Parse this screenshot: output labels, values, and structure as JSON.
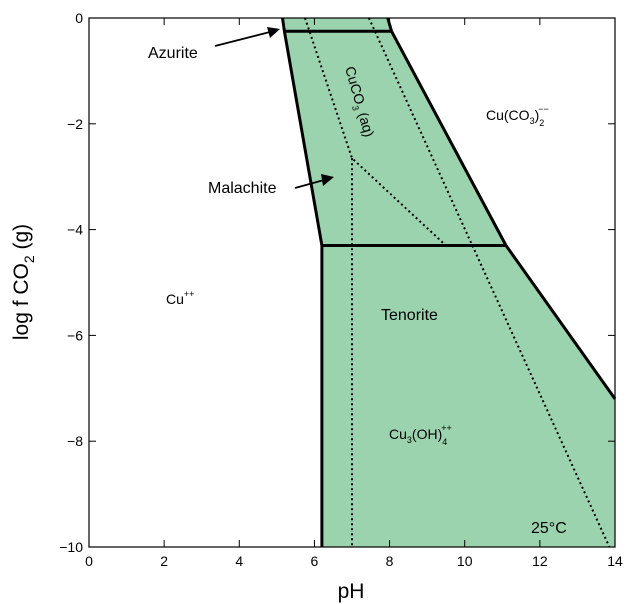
{
  "chart_data": {
    "type": "area",
    "title": "",
    "xlabel": "pH",
    "ylabel": "log f CO2 (g)",
    "xlim": [
      0,
      14
    ],
    "ylim": [
      -10,
      0
    ],
    "xticks": [
      0,
      2,
      4,
      6,
      8,
      10,
      12,
      14
    ],
    "yticks": [
      0,
      -2,
      -4,
      -6,
      -8,
      -10
    ],
    "xtick_labels": [
      "0",
      "2",
      "4",
      "6",
      "8",
      "10",
      "12",
      "14"
    ],
    "ytick_labels": [
      "0",
      "−2",
      "−4",
      "−6",
      "−8",
      "−10"
    ],
    "fill_color": "#9bd3ae",
    "grid": false,
    "stable_regions": [
      {
        "name": "Azurite",
        "polygon": [
          [
            5.15,
            0
          ],
          [
            7.95,
            0
          ],
          [
            8.05,
            -0.25
          ],
          [
            5.2,
            -0.25
          ]
        ]
      },
      {
        "name": "Malachite",
        "polygon": [
          [
            5.2,
            -0.25
          ],
          [
            8.05,
            -0.25
          ],
          [
            11.1,
            -4.3
          ],
          [
            6.2,
            -4.3
          ]
        ]
      },
      {
        "name": "Tenorite",
        "polygon": [
          [
            6.2,
            -4.3
          ],
          [
            11.1,
            -4.3
          ],
          [
            14,
            -7.2
          ],
          [
            14,
            -10
          ],
          [
            6.2,
            -10
          ]
        ]
      }
    ],
    "solid_boundaries": [
      [
        [
          5.15,
          0
        ],
        [
          5.2,
          -0.25
        ],
        [
          6.2,
          -4.3
        ],
        [
          6.2,
          -10
        ]
      ],
      [
        [
          7.95,
          0
        ],
        [
          8.05,
          -0.25
        ],
        [
          11.1,
          -4.3
        ],
        [
          14,
          -7.2
        ]
      ],
      [
        [
          5.2,
          -0.25
        ],
        [
          8.05,
          -0.25
        ]
      ],
      [
        [
          6.2,
          -4.3
        ],
        [
          11.1,
          -4.3
        ]
      ]
    ],
    "dotted_boundaries": [
      [
        [
          5.75,
          0
        ],
        [
          7.0,
          -2.65
        ],
        [
          9.5,
          -4.3
        ]
      ],
      [
        [
          7.45,
          0
        ],
        [
          13.85,
          -10
        ]
      ],
      [
        [
          7.0,
          -2.65
        ],
        [
          7.0,
          -10
        ]
      ]
    ],
    "annotations": {
      "azurite": "Azurite",
      "malachite": "Malachite",
      "tenorite": "Tenorite",
      "temperature": "25°C"
    },
    "species_labels": {
      "cu_ion": {
        "base": "Cu",
        "sup": "++"
      },
      "cuco3_aq": {
        "base": "CuCO",
        "sub": "3",
        "suffix": " (aq)"
      },
      "cu_carbonate": {
        "base": "Cu(CO",
        "sub_mid": "3",
        "mid": ")",
        "sub": "2",
        "sup": "−−"
      },
      "cu3oh4": {
        "base": "Cu",
        "sub1": "3",
        "mid": "(OH)",
        "sub": "4",
        "sup": "++"
      }
    }
  }
}
